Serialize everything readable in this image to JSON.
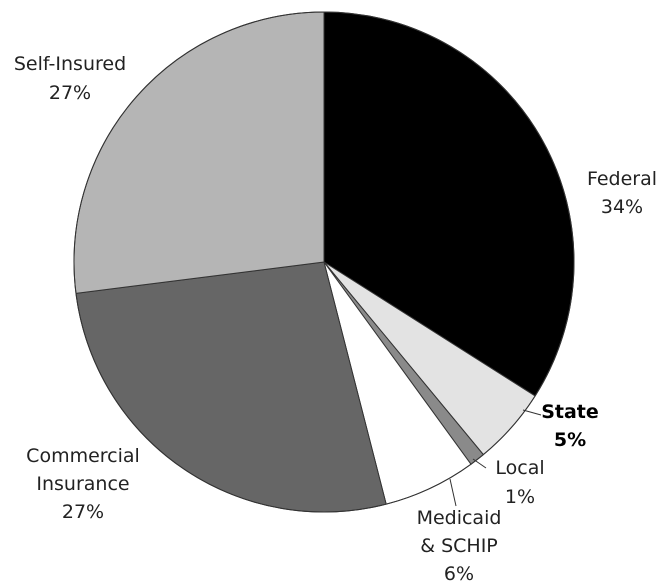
{
  "chart_data": {
    "type": "pie",
    "start_angle_deg": 0,
    "direction": "clockwise",
    "slices": [
      {
        "name": "Federal",
        "line1": "Federal",
        "line2": "34%",
        "value": 34,
        "color": "#000000",
        "bold": false
      },
      {
        "name": "State",
        "line1": "State",
        "line2": "5%",
        "value": 5,
        "color": "#e3e3e3",
        "bold": true
      },
      {
        "name": "Local",
        "line1": "Local",
        "line2": "1%",
        "value": 1,
        "color": "#8a8a8a",
        "bold": false
      },
      {
        "name": "Medicaid & SCHIP",
        "line1": "Medicaid",
        "line2": "& SCHIP",
        "line3": "6%",
        "value": 6,
        "color": "#ffffff",
        "bold": false
      },
      {
        "name": "Commercial Insurance",
        "line1": "Commercial",
        "line2": "Insurance",
        "line3": "27%",
        "value": 27,
        "color": "#666666",
        "bold": false
      },
      {
        "name": "Self-Insured",
        "line1": "Self-Insured",
        "line2": "27%",
        "value": 27,
        "color": "#b5b5b5",
        "bold": false
      }
    ]
  }
}
